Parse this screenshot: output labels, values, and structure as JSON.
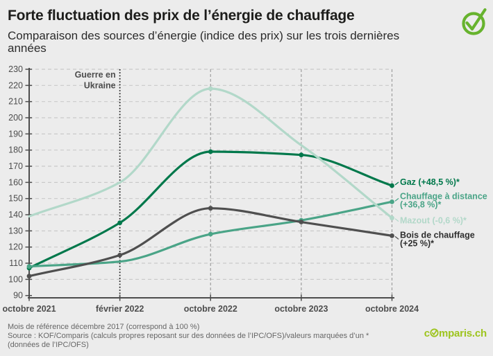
{
  "header": {
    "title": "Forte fluctuation des prix de l’énergie de chauffage",
    "subtitle": "Comparaison des sources d’énergie (indice des prix) sur les trois dernières années"
  },
  "brand": {
    "check_color": "#67b32e",
    "logo_color": "#9dc41d",
    "logo_text_pre": "c",
    "logo_text_post": "mparis.ch"
  },
  "chart_data": {
    "type": "line",
    "title": "",
    "xlabel": "",
    "ylabel": "",
    "ylim": [
      90,
      230
    ],
    "ytick_step": 10,
    "grid": true,
    "legend_position": "right-of-line-ends",
    "background": "#ececec",
    "axis_color": "#4d4d4d",
    "gridline_color": "#c9c9c9",
    "guide_line_color": "#9e9e9e",
    "event_line_color": "#1a1a1a",
    "categories": [
      "octobre 2021",
      "février 2022",
      "octobre 2022",
      "octobre 2023",
      "octobre 2024"
    ],
    "annotation": {
      "category_index": 1,
      "lines": [
        "Guerre en",
        "Ukraine"
      ]
    },
    "guide_line_indices": [
      2,
      3,
      4
    ],
    "series": [
      {
        "name": "Gaz",
        "color": "#00784b",
        "label_color": "#00784b",
        "values": [
          107,
          135,
          179,
          177,
          158
        ],
        "label_lines": [
          "Gaz (+48,5 %)*"
        ],
        "label_dy": [
          -5
        ],
        "marker_indices": [
          0,
          1,
          2,
          3,
          4
        ]
      },
      {
        "name": "Chauffage à distance",
        "color": "#4aa487",
        "label_color": "#4aa487",
        "values": [
          108,
          111,
          128,
          136.5,
          148
        ],
        "label_lines": [
          "Chauffage à distance",
          "(+36,8 %)*"
        ],
        "label_dy": [
          -8,
          4
        ],
        "marker_indices": [
          0,
          2,
          3,
          4
        ]
      },
      {
        "name": "Mazout",
        "color": "#b2d8c9",
        "label_color": "#b2d8c9",
        "values": [
          139,
          160,
          218,
          183,
          138
        ],
        "label_lines": [
          "Mazout (-0,6 %)*"
        ],
        "label_dy": [
          4
        ],
        "marker_indices": [
          2,
          4
        ]
      },
      {
        "name": "Bois de chauffage",
        "color": "#4f4f4f",
        "label_color": "#2e2e2e",
        "values": [
          102,
          115,
          144,
          135.5,
          127
        ],
        "label_lines": [
          "Bois de chauffage",
          "(+25 %)*"
        ],
        "label_dy": [
          -1,
          11
        ],
        "marker_indices": [
          0,
          1,
          2,
          3,
          4
        ]
      }
    ]
  },
  "footer": {
    "note": "Mois de référence décembre 2017 (correspond à 100 %)",
    "source": "Source : KOF/Comparis (calculs propres reposant sur des données de l’IPC/OFS)/valeurs marquées d’un * (données de l’IPC/OFS)"
  }
}
